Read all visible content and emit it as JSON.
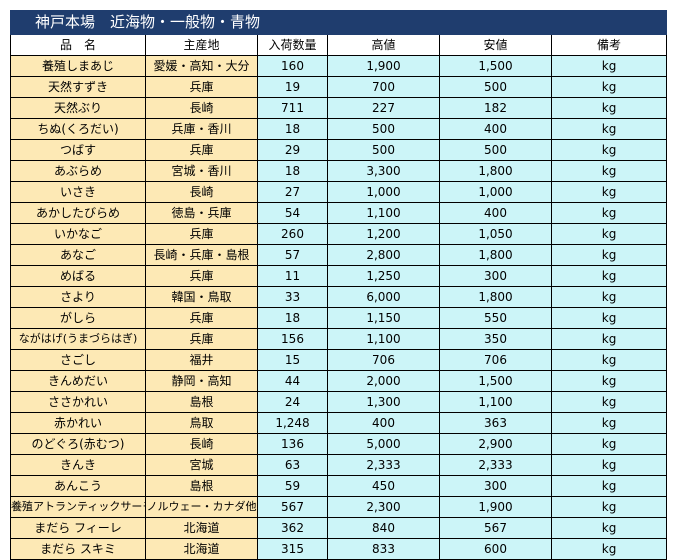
{
  "title": "神戸本場　近海物・一般物・青物",
  "headers": [
    "品　名",
    "主産地",
    "入荷数量",
    "高値",
    "安値",
    "備考"
  ],
  "rows": [
    [
      "養殖しまあじ",
      "愛媛・高知・大分",
      "160",
      "1,900",
      "1,500",
      "kg"
    ],
    [
      "天然すずき",
      "兵庫",
      "19",
      "700",
      "500",
      "kg"
    ],
    [
      "天然ぶり",
      "長崎",
      "711",
      "227",
      "182",
      "kg"
    ],
    [
      "ちぬ(くろだい)",
      "兵庫・香川",
      "18",
      "500",
      "400",
      "kg"
    ],
    [
      "つばす",
      "兵庫",
      "29",
      "500",
      "500",
      "kg"
    ],
    [
      "あぶらめ",
      "宮城・香川",
      "18",
      "3,300",
      "1,800",
      "kg"
    ],
    [
      "いさき",
      "長崎",
      "27",
      "1,000",
      "1,000",
      "kg"
    ],
    [
      "あかしたびらめ",
      "徳島・兵庫",
      "54",
      "1,100",
      "400",
      "kg"
    ],
    [
      "いかなご",
      "兵庫",
      "260",
      "1,200",
      "1,050",
      "kg"
    ],
    [
      "あなご",
      "長崎・兵庫・島根",
      "57",
      "2,800",
      "1,800",
      "kg"
    ],
    [
      "めばる",
      "兵庫",
      "11",
      "1,250",
      "300",
      "kg"
    ],
    [
      "さより",
      "韓国・鳥取",
      "33",
      "6,000",
      "1,800",
      "kg"
    ],
    [
      "がしら",
      "兵庫",
      "18",
      "1,150",
      "550",
      "kg"
    ],
    [
      "ながはげ(うまづらはぎ)",
      "兵庫",
      "156",
      "1,100",
      "350",
      "kg"
    ],
    [
      "さごし",
      "福井",
      "15",
      "706",
      "706",
      "kg"
    ],
    [
      "きんめだい",
      "静岡・高知",
      "44",
      "2,000",
      "1,500",
      "kg"
    ],
    [
      "ささかれい",
      "島根",
      "24",
      "1,300",
      "1,100",
      "kg"
    ],
    [
      "赤かれい",
      "鳥取",
      "1,248",
      "400",
      "363",
      "kg"
    ],
    [
      "のどぐろ(赤むつ)",
      "長崎",
      "136",
      "5,000",
      "2,900",
      "kg"
    ],
    [
      "きんき",
      "宮城",
      "63",
      "2,333",
      "2,333",
      "kg"
    ],
    [
      "あんこう",
      "島根",
      "59",
      "450",
      "300",
      "kg"
    ],
    [
      "養殖アトランティックサーモン",
      "ノルウェー・カナダ他",
      "567",
      "2,300",
      "1,900",
      "kg"
    ],
    [
      "まだら フィーレ",
      "北海道",
      "362",
      "840",
      "567",
      "kg"
    ],
    [
      "まだら スキミ",
      "北海道",
      "315",
      "833",
      "600",
      "kg"
    ]
  ]
}
